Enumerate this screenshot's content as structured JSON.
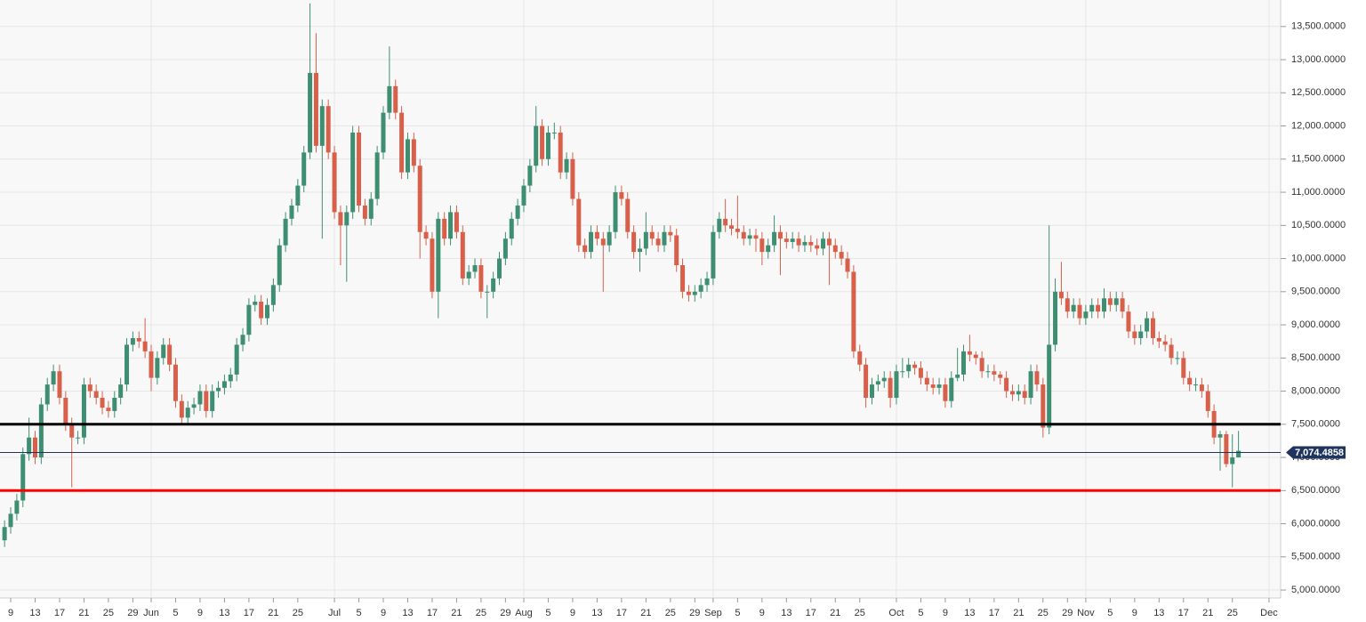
{
  "chart_data": {
    "type": "candlestick",
    "open": [
      5750,
      5950,
      6150,
      6350,
      7050,
      7300,
      7000,
      7800,
      8100,
      8300,
      7900,
      7500,
      7300,
      7300,
      8100,
      8000,
      7900,
      7750,
      7700,
      7900,
      8100,
      8700,
      8800,
      8750,
      8600,
      8200,
      8500,
      8700,
      8400,
      7850,
      7600,
      7750,
      7800,
      8000,
      7700,
      8000,
      8050,
      8150,
      8250,
      8700,
      8850,
      9300,
      9350,
      9100,
      9300,
      9600,
      10200,
      10600,
      10800,
      11100,
      11600,
      12800,
      11700,
      12300,
      11600,
      10700,
      10500,
      10700,
      11900,
      10800,
      10600,
      10900,
      11600,
      12200,
      12600,
      12200,
      11300,
      11800,
      11400,
      10400,
      10300,
      9500,
      10600,
      10300,
      10700,
      10400,
      9700,
      9800,
      9900,
      9500,
      9500,
      9700,
      10000,
      10300,
      10600,
      10800,
      11100,
      11400,
      12000,
      11500,
      11900,
      11900,
      11300,
      11500,
      10900,
      10200,
      10100,
      10400,
      10300,
      10200,
      10400,
      11000,
      10900,
      10400,
      10100,
      10150,
      10400,
      10300,
      10200,
      10400,
      10350,
      9900,
      9500,
      9450,
      9500,
      9600,
      9700,
      10400,
      10600,
      10500,
      10450,
      10400,
      10300,
      10350,
      10300,
      10100,
      10200,
      10400,
      10300,
      10250,
      10300,
      10200,
      10250,
      10200,
      10150,
      10300,
      10200,
      10100,
      10000,
      9800,
      8600,
      8400,
      7900,
      8100,
      8150,
      8200,
      7900,
      8300,
      8300,
      8400,
      8350,
      8200,
      8100,
      8050,
      8100,
      7850,
      8200,
      8250,
      8600,
      8550,
      8500,
      8300,
      8300,
      8250,
      8200,
      8000,
      7950,
      8000,
      7900,
      8300,
      8100,
      7450,
      8700,
      9500,
      9400,
      9200,
      9300,
      9100,
      9200,
      9300,
      9200,
      9400,
      9300,
      9400,
      9200,
      8900,
      8800,
      8900,
      9100,
      8800,
      8750,
      8700,
      8500,
      8500,
      8200,
      8100,
      8100,
      8000,
      7700,
      7300,
      7350,
      6900,
      7000
    ],
    "high": [
      6050,
      6250,
      6450,
      7150,
      7600,
      7400,
      7900,
      8200,
      8400,
      8400,
      8000,
      7600,
      7400,
      8200,
      8200,
      8100,
      8000,
      7850,
      8000,
      8200,
      8800,
      8900,
      8900,
      9100,
      8700,
      8600,
      8800,
      8800,
      8500,
      7950,
      7850,
      7900,
      8100,
      8100,
      8100,
      8150,
      8250,
      8350,
      8800,
      8950,
      9400,
      9450,
      9450,
      9400,
      9700,
      10300,
      10700,
      10900,
      11200,
      11700,
      13850,
      13400,
      12400,
      12400,
      11700,
      10800,
      10800,
      12000,
      12000,
      10900,
      11000,
      11700,
      12300,
      13200,
      12700,
      12300,
      11900,
      11900,
      11500,
      10500,
      10400,
      10700,
      10700,
      10800,
      10800,
      10500,
      9900,
      10000,
      10000,
      9600,
      9800,
      10100,
      10400,
      10700,
      10900,
      11200,
      11500,
      12300,
      12100,
      12000,
      12050,
      12000,
      11600,
      11600,
      11000,
      10300,
      10500,
      10500,
      10400,
      10500,
      11100,
      11100,
      11000,
      10500,
      10300,
      10700,
      10500,
      10400,
      10500,
      10500,
      10450,
      10000,
      9600,
      9600,
      9700,
      9800,
      10500,
      10700,
      10900,
      10600,
      10950,
      10500,
      10450,
      10450,
      10400,
      10300,
      10650,
      10500,
      10400,
      10400,
      10400,
      10350,
      10350,
      10300,
      10400,
      10400,
      10300,
      10200,
      10100,
      9900,
      8700,
      8500,
      8200,
      8250,
      8300,
      8300,
      8400,
      8500,
      8500,
      8450,
      8450,
      8300,
      8200,
      8200,
      8200,
      8300,
      8650,
      8700,
      8850,
      8600,
      8600,
      8400,
      8400,
      8300,
      8300,
      8100,
      8100,
      8100,
      8400,
      8400,
      8200,
      10500,
      9700,
      9950,
      9500,
      9400,
      9400,
      9300,
      9400,
      9400,
      9550,
      9500,
      9500,
      9500,
      9300,
      9000,
      9000,
      9200,
      9200,
      8900,
      8850,
      8800,
      8600,
      8600,
      8300,
      8200,
      8200,
      8100,
      7800,
      7400,
      7400,
      7350,
      7400
    ],
    "low": [
      5650,
      5850,
      6050,
      6250,
      6950,
      6900,
      6900,
      7700,
      8000,
      7800,
      7400,
      6550,
      7200,
      7200,
      7900,
      7800,
      7650,
      7600,
      7600,
      7800,
      8000,
      8600,
      8650,
      8500,
      8000,
      8100,
      8400,
      8300,
      7750,
      7500,
      7500,
      7650,
      7700,
      7600,
      7600,
      7900,
      7950,
      8050,
      8150,
      8600,
      8750,
      9200,
      9000,
      9000,
      9200,
      9500,
      10100,
      10500,
      10700,
      11000,
      11500,
      11600,
      10300,
      11500,
      10600,
      9900,
      9650,
      10600,
      10700,
      10500,
      10500,
      10800,
      11500,
      12100,
      12100,
      11200,
      11200,
      11300,
      10000,
      10200,
      9400,
      9100,
      10200,
      10200,
      10300,
      9600,
      9600,
      9700,
      9400,
      9100,
      9400,
      9600,
      9900,
      10200,
      10500,
      10700,
      11000,
      11300,
      11400,
      11400,
      11800,
      11200,
      11200,
      10800,
      10100,
      10000,
      10000,
      10200,
      9500,
      10100,
      10300,
      10800,
      10300,
      10000,
      9800,
      10050,
      10200,
      10100,
      10100,
      10250,
      9800,
      9400,
      9350,
      9350,
      9400,
      9500,
      9600,
      10300,
      10400,
      10350,
      10300,
      10200,
      10200,
      10100,
      9900,
      10000,
      10100,
      9750,
      10150,
      10150,
      10100,
      10100,
      10100,
      10050,
      10050,
      9600,
      10000,
      9900,
      9700,
      8500,
      8300,
      7750,
      7800,
      8000,
      8050,
      7750,
      7800,
      8200,
      8200,
      8250,
      8100,
      8000,
      7950,
      7950,
      7750,
      7750,
      8150,
      8150,
      8450,
      8400,
      8200,
      8200,
      8150,
      8100,
      7900,
      7850,
      7850,
      7800,
      7800,
      8000,
      7300,
      7350,
      8600,
      9300,
      9100,
      9100,
      9000,
      9000,
      9100,
      9100,
      9100,
      9200,
      9200,
      9100,
      8800,
      8700,
      8700,
      8800,
      8700,
      8650,
      8600,
      8400,
      8400,
      8100,
      8000,
      8000,
      7900,
      7600,
      7200,
      6800,
      6850,
      6550,
      7000
    ],
    "close": [
      5950,
      6150,
      6350,
      7050,
      7300,
      7000,
      7800,
      8100,
      8300,
      7900,
      7500,
      7300,
      7300,
      8100,
      8000,
      7900,
      7750,
      7700,
      7900,
      8100,
      8700,
      8800,
      8750,
      8600,
      8200,
      8500,
      8700,
      8400,
      7850,
      7600,
      7750,
      7800,
      8000,
      7700,
      8000,
      8050,
      8150,
      8250,
      8700,
      8850,
      9300,
      9350,
      9100,
      9300,
      9600,
      10200,
      10600,
      10800,
      11100,
      11600,
      12800,
      11700,
      12300,
      11600,
      10700,
      10500,
      10700,
      11900,
      10800,
      10600,
      10900,
      11600,
      12200,
      12600,
      12200,
      11300,
      11800,
      11400,
      10400,
      10300,
      9500,
      10600,
      10300,
      10700,
      10400,
      9700,
      9800,
      9900,
      9500,
      9500,
      9700,
      10000,
      10300,
      10600,
      10800,
      11100,
      11400,
      12000,
      11500,
      11900,
      11900,
      11300,
      11500,
      10900,
      10200,
      10100,
      10400,
      10300,
      10200,
      10400,
      11000,
      10900,
      10400,
      10100,
      10150,
      10400,
      10300,
      10200,
      10400,
      10350,
      9900,
      9500,
      9450,
      9500,
      9600,
      9700,
      10400,
      10600,
      10500,
      10450,
      10400,
      10300,
      10350,
      10300,
      10100,
      10200,
      10400,
      10300,
      10250,
      10300,
      10200,
      10250,
      10200,
      10150,
      10300,
      10200,
      10100,
      10000,
      9800,
      8600,
      8400,
      7900,
      8100,
      8150,
      8200,
      7900,
      8300,
      8300,
      8400,
      8350,
      8200,
      8100,
      8050,
      8100,
      7850,
      8200,
      8250,
      8600,
      8550,
      8500,
      8300,
      8300,
      8250,
      8200,
      8000,
      7950,
      8000,
      7900,
      8300,
      8100,
      7450,
      8700,
      9500,
      9400,
      9200,
      9300,
      9100,
      9200,
      9300,
      9200,
      9400,
      9300,
      9400,
      9200,
      8900,
      8800,
      8900,
      9100,
      8800,
      8750,
      8700,
      8500,
      8500,
      8200,
      8100,
      8100,
      8000,
      7700,
      7300,
      7350,
      6900,
      7000,
      7100
    ],
    "up_color": "#3e8f72",
    "down_color": "#d8604b",
    "xlim": [
      -0.75,
      208.9
    ],
    "xticks": [
      {
        "value": 1,
        "label": "9"
      },
      {
        "value": 5,
        "label": "13"
      },
      {
        "value": 9,
        "label": "17"
      },
      {
        "value": 13,
        "label": "21"
      },
      {
        "value": 17,
        "label": "25"
      },
      {
        "value": 21,
        "label": "29"
      },
      {
        "value": 24,
        "label": "Jun"
      },
      {
        "value": 28,
        "label": "5"
      },
      {
        "value": 32,
        "label": "9"
      },
      {
        "value": 36,
        "label": "13"
      },
      {
        "value": 40,
        "label": "17"
      },
      {
        "value": 44,
        "label": "21"
      },
      {
        "value": 48,
        "label": "25"
      },
      {
        "value": 54,
        "label": "Jul"
      },
      {
        "value": 58,
        "label": "5"
      },
      {
        "value": 62,
        "label": "9"
      },
      {
        "value": 66,
        "label": "13"
      },
      {
        "value": 70,
        "label": "17"
      },
      {
        "value": 74,
        "label": "21"
      },
      {
        "value": 78,
        "label": "25"
      },
      {
        "value": 82,
        "label": "29"
      },
      {
        "value": 85,
        "label": "Aug"
      },
      {
        "value": 89,
        "label": "5"
      },
      {
        "value": 93,
        "label": "9"
      },
      {
        "value": 97,
        "label": "13"
      },
      {
        "value": 101,
        "label": "17"
      },
      {
        "value": 105,
        "label": "21"
      },
      {
        "value": 109,
        "label": "25"
      },
      {
        "value": 113,
        "label": "29"
      },
      {
        "value": 116,
        "label": "Sep"
      },
      {
        "value": 120,
        "label": "5"
      },
      {
        "value": 124,
        "label": "9"
      },
      {
        "value": 128,
        "label": "13"
      },
      {
        "value": 132,
        "label": "17"
      },
      {
        "value": 136,
        "label": "21"
      },
      {
        "value": 140,
        "label": "25"
      },
      {
        "value": 146,
        "label": "Oct"
      },
      {
        "value": 150,
        "label": "5"
      },
      {
        "value": 154,
        "label": "9"
      },
      {
        "value": 158,
        "label": "13"
      },
      {
        "value": 162,
        "label": "17"
      },
      {
        "value": 166,
        "label": "21"
      },
      {
        "value": 170,
        "label": "25"
      },
      {
        "value": 174,
        "label": "29"
      },
      {
        "value": 177,
        "label": "Nov"
      },
      {
        "value": 181,
        "label": "5"
      },
      {
        "value": 185,
        "label": "9"
      },
      {
        "value": 189,
        "label": "13"
      },
      {
        "value": 193,
        "label": "17"
      },
      {
        "value": 197,
        "label": "21"
      },
      {
        "value": 201,
        "label": "25"
      },
      {
        "value": 207,
        "label": "Dec"
      }
    ],
    "ylim": [
      4880,
      13900
    ],
    "yticks": [
      {
        "value": 5000,
        "label": "5,000.0000"
      },
      {
        "value": 5500,
        "label": "5,500.0000"
      },
      {
        "value": 6000,
        "label": "6,000.0000"
      },
      {
        "value": 6500,
        "label": "6,500.0000"
      },
      {
        "value": 7000,
        "label": "7,000.0000"
      },
      {
        "value": 7500,
        "label": "7,500.0000"
      },
      {
        "value": 8000,
        "label": "8,000.0000"
      },
      {
        "value": 8500,
        "label": "8,500.0000"
      },
      {
        "value": 9000,
        "label": "9,000.0000"
      },
      {
        "value": 9500,
        "label": "9,500.0000"
      },
      {
        "value": 10000,
        "label": "10,000.0000"
      },
      {
        "value": 10500,
        "label": "10,500.0000"
      },
      {
        "value": 11000,
        "label": "11,000.0000"
      },
      {
        "value": 11500,
        "label": "11,500.0000"
      },
      {
        "value": 12000,
        "label": "12,000.0000"
      },
      {
        "value": 12500,
        "label": "12,500.0000"
      },
      {
        "value": 13000,
        "label": "13,000.0000"
      },
      {
        "value": 13500,
        "label": "13,500.0000"
      }
    ],
    "grid": true,
    "levels": [
      {
        "value": 7500,
        "color": "#000000"
      },
      {
        "value": 6500,
        "color": "#ff0000"
      }
    ],
    "last_price": {
      "value": 7074.4858,
      "label": "7,074.4858",
      "color": "#1f3560"
    }
  }
}
